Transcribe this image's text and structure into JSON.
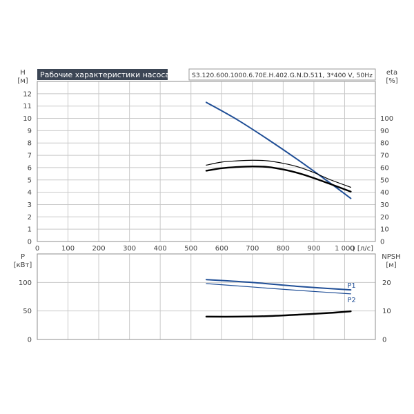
{
  "chart_data": [
    {
      "type": "line",
      "title": "Рабочие характеристики насоса",
      "model_label": "S3.120.600.1000.6.70E.H.402.G.N.D.511, 3*400 V, 50Hz",
      "x_axis": {
        "label": "Q [л/с]",
        "range": [
          0,
          1100
        ],
        "ticks": [
          0,
          100,
          200,
          300,
          400,
          500,
          600,
          700,
          800,
          900,
          1000
        ],
        "tick_labels": [
          "0",
          "100",
          "200",
          "300",
          "400",
          "500",
          "600",
          "700",
          "800",
          "900",
          "1 000"
        ]
      },
      "y_left": {
        "label": "H",
        "unit": "[м]",
        "range": [
          0,
          13
        ],
        "ticks": [
          0,
          1,
          2,
          3,
          4,
          5,
          6,
          7,
          8,
          9,
          10,
          11,
          12
        ]
      },
      "y_right": {
        "label": "eta",
        "unit": "[%]",
        "range": [
          0,
          130
        ],
        "ticks": [
          0,
          10,
          20,
          30,
          40,
          50,
          60,
          70,
          80,
          90,
          100
        ]
      },
      "grid": true,
      "series": [
        {
          "key": "H",
          "axis": "left",
          "color": "#1f4e96",
          "x": [
            550,
            650,
            750,
            850,
            950,
            1020
          ],
          "values": [
            11.3,
            9.9,
            8.3,
            6.6,
            4.8,
            3.5
          ]
        },
        {
          "key": "eta1",
          "axis": "right",
          "color": "#000000",
          "x": [
            550,
            600,
            650,
            700,
            750,
            800,
            850,
            900,
            950,
            1020
          ],
          "values": [
            62,
            64.5,
            65.5,
            66,
            65.5,
            63.5,
            60.5,
            56,
            50.5,
            44
          ]
        },
        {
          "key": "eta2",
          "axis": "right",
          "color": "#000000",
          "x": [
            550,
            600,
            650,
            700,
            750,
            800,
            850,
            900,
            950,
            1020
          ],
          "values": [
            57.5,
            59.5,
            60.5,
            61,
            60.5,
            58.5,
            55.5,
            51.5,
            47,
            40.5
          ]
        }
      ]
    },
    {
      "type": "line",
      "y_left": {
        "label": "P",
        "unit": "[кВт]",
        "range": [
          0,
          150
        ],
        "ticks": [
          0,
          50,
          100
        ]
      },
      "y_right": {
        "label": "NPSH",
        "unit": "[м]",
        "range": [
          0,
          30
        ],
        "ticks": [
          0,
          10,
          20
        ]
      },
      "grid": true,
      "series": [
        {
          "name": "P1",
          "axis": "left",
          "color": "#1f4e96",
          "x": [
            550,
            700,
            850,
            1020
          ],
          "values": [
            105,
            100,
            93,
            87
          ]
        },
        {
          "name": "P2",
          "axis": "left",
          "color": "#1f4e96",
          "x": [
            550,
            700,
            850,
            1020
          ],
          "values": [
            98,
            92,
            86,
            80
          ]
        },
        {
          "key": "NPSH",
          "axis": "right",
          "color": "#000000",
          "x": [
            550,
            650,
            750,
            850,
            950,
            1020
          ],
          "values": [
            8.0,
            8.0,
            8.2,
            8.7,
            9.3,
            9.9
          ]
        }
      ]
    }
  ]
}
